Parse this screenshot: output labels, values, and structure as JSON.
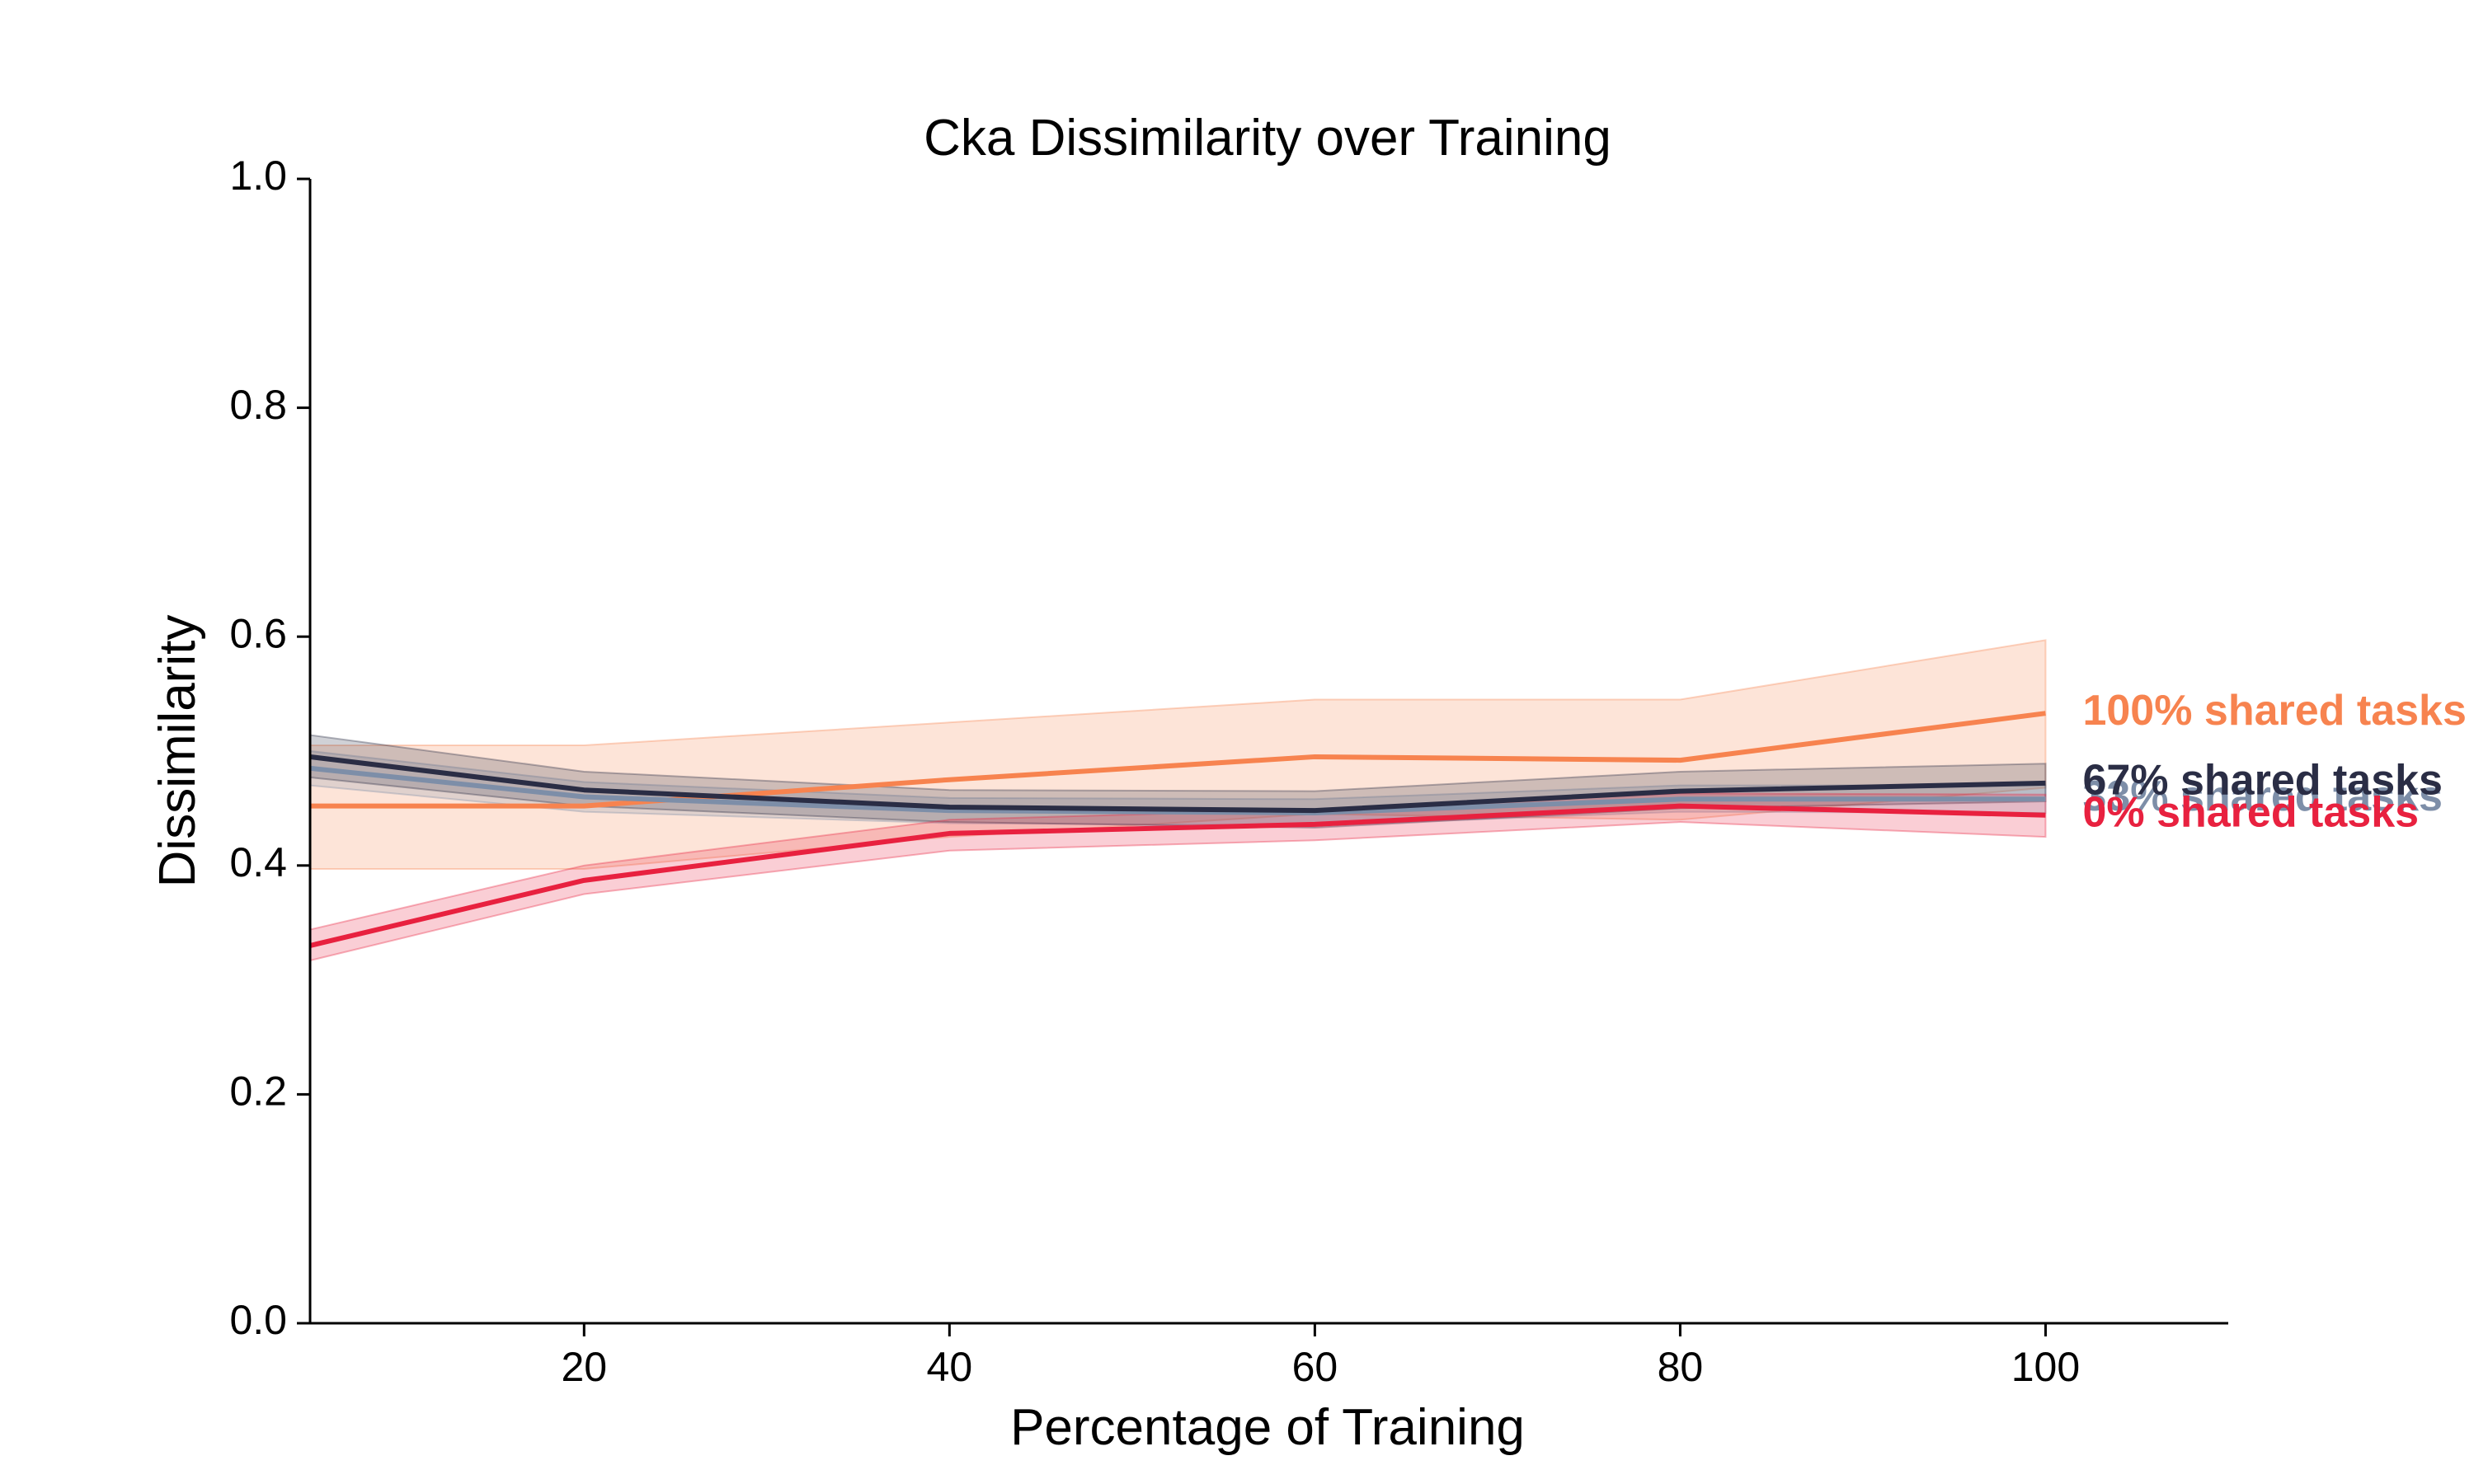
{
  "chart_data": {
    "type": "line",
    "title": "Cka Dissimilarity over Training",
    "xlabel": "Percentage of Training",
    "ylabel": "Dissimilarity",
    "xlim": [
      5,
      110
    ],
    "ylim": [
      0,
      1.0
    ],
    "xticks": [
      20,
      40,
      60,
      80,
      100
    ],
    "yticks": [
      0.0,
      0.2,
      0.4,
      0.6,
      0.8,
      1.0
    ],
    "grid": false,
    "legend": "inline labels at line ends (right)",
    "x": [
      5,
      20,
      40,
      60,
      80,
      100
    ],
    "series": [
      {
        "name": "100% shared tasks",
        "color": "#F7834F",
        "values": [
          0.452,
          0.452,
          0.475,
          0.495,
          0.492,
          0.533
        ],
        "lower": [
          0.397,
          0.397,
          0.425,
          0.445,
          0.44,
          0.468
        ],
        "upper": [
          0.505,
          0.505,
          0.525,
          0.545,
          0.545,
          0.597
        ]
      },
      {
        "name": "33% shared tasks",
        "color": "#7D8EA8",
        "values": [
          0.485,
          0.46,
          0.448,
          0.446,
          0.458,
          0.458
        ],
        "lower": [
          0.47,
          0.447,
          0.437,
          0.435,
          0.447,
          0.446
        ],
        "upper": [
          0.5,
          0.473,
          0.459,
          0.458,
          0.47,
          0.47
        ]
      },
      {
        "name": "67% shared tasks",
        "color": "#2A2D45",
        "values": [
          0.495,
          0.466,
          0.451,
          0.448,
          0.465,
          0.472
        ],
        "lower": [
          0.477,
          0.452,
          0.438,
          0.433,
          0.45,
          0.456
        ],
        "upper": [
          0.514,
          0.482,
          0.466,
          0.465,
          0.482,
          0.489
        ]
      },
      {
        "name": "0% shared tasks",
        "color": "#E8213F",
        "values": [
          0.33,
          0.387,
          0.428,
          0.436,
          0.452,
          0.444
        ],
        "lower": [
          0.317,
          0.375,
          0.413,
          0.422,
          0.438,
          0.425
        ],
        "upper": [
          0.344,
          0.4,
          0.44,
          0.449,
          0.463,
          0.462
        ]
      }
    ]
  }
}
